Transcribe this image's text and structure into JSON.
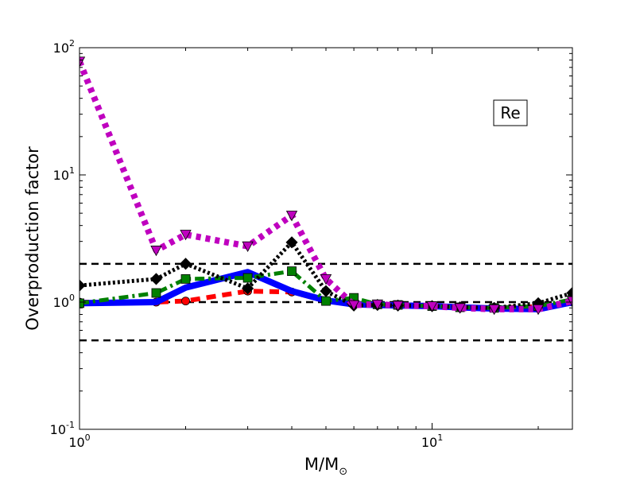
{
  "chart_data": {
    "type": "line",
    "title": "",
    "xlabel": "M/M",
    "xlabel_sub": "⊙",
    "ylabel": "Overproduction factor",
    "xscale": "log",
    "yscale": "log",
    "xlim": [
      1,
      25
    ],
    "ylim": [
      0.1,
      100
    ],
    "x_ticks": [
      {
        "value": 1,
        "base": "10",
        "exp": "0"
      },
      {
        "value": 10,
        "base": "10",
        "exp": "1"
      }
    ],
    "y_ticks": [
      {
        "value": 0.1,
        "base": "10",
        "exp": "-1"
      },
      {
        "value": 1,
        "base": "10",
        "exp": "0"
      },
      {
        "value": 10,
        "base": "10",
        "exp": "1"
      },
      {
        "value": 100,
        "base": "10",
        "exp": "2"
      }
    ],
    "annotation": "Re",
    "annotation_position": "top-right",
    "grid": false,
    "reference_lines": [
      {
        "y": 2.0,
        "color": "#000000",
        "style": "dashed"
      },
      {
        "y": 1.0,
        "color": "#000000",
        "style": "dashed"
      },
      {
        "y": 0.5,
        "color": "#000000",
        "style": "dashed"
      }
    ],
    "series": [
      {
        "color": "#ff0000",
        "style": "dashed",
        "marker": "circle",
        "x": [
          1,
          1.65,
          2,
          3,
          4,
          5,
          6,
          7,
          8,
          10,
          12,
          15,
          20,
          25
        ],
        "y": [
          1.0,
          1.0,
          1.02,
          1.22,
          1.2,
          1.02,
          0.97,
          0.95,
          0.95,
          0.93,
          0.92,
          0.9,
          0.92,
          1.0
        ]
      },
      {
        "color": "#0000ff",
        "style": "solid",
        "marker": "none",
        "x": [
          1,
          1.65,
          2,
          3,
          4,
          5,
          6,
          7,
          8,
          10,
          12,
          15,
          20,
          25
        ],
        "y": [
          0.98,
          1.0,
          1.3,
          1.72,
          1.22,
          1.03,
          0.96,
          0.95,
          0.94,
          0.93,
          0.91,
          0.89,
          0.88,
          1.0
        ]
      },
      {
        "color": "#008000",
        "style": "dash-dot",
        "marker": "square",
        "x": [
          1,
          1.65,
          2,
          3,
          4,
          5,
          6,
          7,
          8,
          10,
          12,
          15,
          20,
          25
        ],
        "y": [
          0.98,
          1.18,
          1.52,
          1.55,
          1.75,
          1.02,
          1.08,
          0.96,
          0.95,
          0.93,
          0.91,
          0.9,
          0.93,
          1.05
        ]
      },
      {
        "color": "#000000",
        "style": "dotted",
        "marker": "diamond",
        "x": [
          1,
          1.65,
          2,
          3,
          4,
          5,
          6,
          7,
          8,
          10,
          12,
          15,
          20,
          25
        ],
        "y": [
          1.35,
          1.52,
          2.0,
          1.28,
          2.95,
          1.22,
          0.94,
          0.95,
          0.94,
          0.93,
          0.91,
          0.9,
          0.98,
          1.18
        ]
      },
      {
        "color": "#bf00bf",
        "style": "dotted",
        "marker": "triangle-down",
        "x": [
          1,
          1.65,
          2,
          3,
          4,
          5,
          6,
          7,
          8,
          10,
          12,
          15,
          20,
          25
        ],
        "y": [
          78,
          2.55,
          3.4,
          2.75,
          4.8,
          1.52,
          0.95,
          0.96,
          0.94,
          0.93,
          0.9,
          0.88,
          0.88,
          1.02
        ]
      }
    ]
  }
}
